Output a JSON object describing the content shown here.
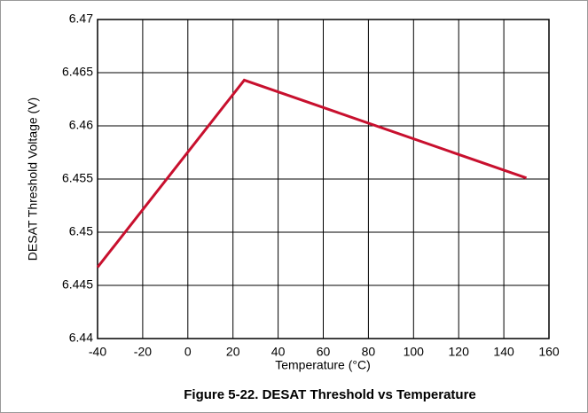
{
  "chart_data": {
    "type": "line",
    "title": "Figure 5-22. DESAT Threshold vs Temperature",
    "xlabel": "Temperature (°C)",
    "ylabel": "DESAT Threshold Voltage (V)",
    "x": [
      -40,
      25,
      150
    ],
    "values": [
      6.4467,
      6.4643,
      6.4551
    ],
    "color": "#c8102e",
    "xlim": [
      -40,
      160
    ],
    "xticks": [
      -40,
      -20,
      0,
      20,
      40,
      60,
      80,
      100,
      120,
      140,
      160
    ],
    "ylim": [
      6.44,
      6.47
    ],
    "yticks": [
      6.44,
      6.445,
      6.45,
      6.455,
      6.46,
      6.465,
      6.47
    ],
    "grid": true
  }
}
